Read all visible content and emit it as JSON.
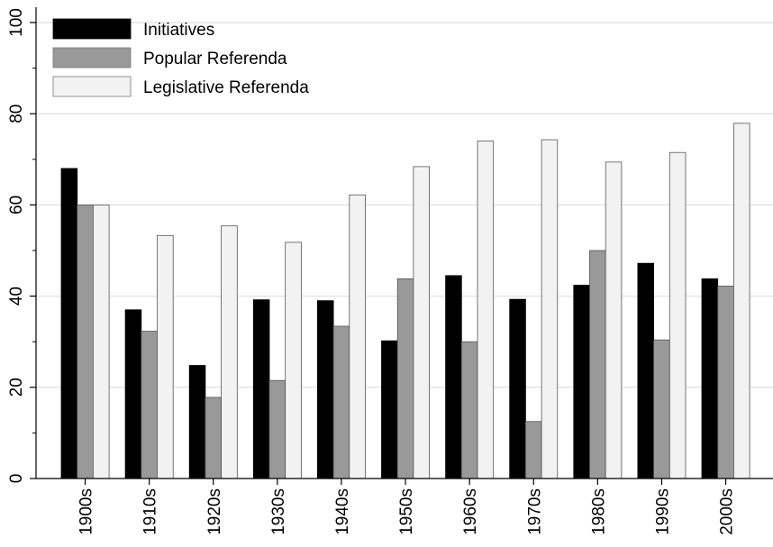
{
  "chart_data": {
    "type": "bar",
    "title": "",
    "xlabel": "",
    "ylabel": "",
    "categories": [
      "1900s",
      "1910s",
      "1920s",
      "1930s",
      "1940s",
      "1950s",
      "1960s",
      "1970s",
      "1980s",
      "1990s",
      "2000s"
    ],
    "series": [
      {
        "name": "Initiatives",
        "color": "#000000",
        "values": [
          68,
          37,
          24.8,
          39.2,
          39,
          30.2,
          44.5,
          39.3,
          42.4,
          47.2,
          43.8
        ]
      },
      {
        "name": "Popular Referenda",
        "color": "#999999",
        "values": [
          60,
          32.3,
          17.8,
          21.5,
          33.4,
          43.8,
          30,
          12.5,
          50,
          30.4,
          42.2
        ]
      },
      {
        "name": "Legislative Referenda",
        "color": "#f2f2f2",
        "values": [
          60,
          53.3,
          55.4,
          51.8,
          62.2,
          68.4,
          74,
          74.3,
          69.4,
          71.5,
          77.9
        ]
      }
    ],
    "ylim": [
      0,
      100
    ],
    "yticks": [
      0,
      20,
      40,
      60,
      80,
      100
    ],
    "grid": true,
    "legend_position": "top-left"
  }
}
